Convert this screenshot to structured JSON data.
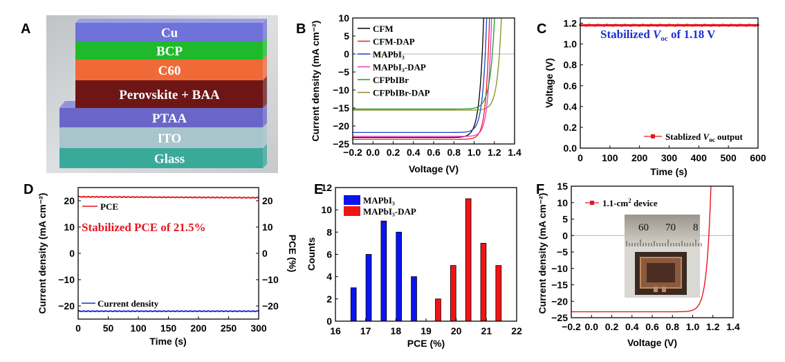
{
  "panels": {
    "a": "A",
    "b": "B",
    "c": "C",
    "d": "D",
    "e": "E",
    "f": "F"
  },
  "chart_data": [
    {
      "id": "A",
      "type": "diagram",
      "layers": [
        {
          "name": "Cu",
          "color": "#6f72d8"
        },
        {
          "name": "BCP",
          "color": "#1fba2b"
        },
        {
          "name": "C60",
          "color": "#f06a37"
        },
        {
          "name": "Perovskite + BAA",
          "color": "#6e1616"
        },
        {
          "name": "PTAA",
          "color": "#6a66c8"
        },
        {
          "name": "ITO",
          "color": "#a8c4cc"
        },
        {
          "name": "Glass",
          "color": "#39a99a"
        }
      ]
    },
    {
      "id": "B",
      "type": "line",
      "xlabel": "Voltage (V)",
      "ylabel": "Current density (mA cm⁻²)",
      "xlim": [
        -0.2,
        1.4
      ],
      "ylim": [
        -25,
        10
      ],
      "xticks": [
        -0.2,
        0.0,
        0.2,
        0.4,
        0.6,
        0.8,
        1.0,
        1.2,
        1.4
      ],
      "yticks": [
        -25,
        -20,
        -15,
        -10,
        -5,
        0,
        5,
        10
      ],
      "series": [
        {
          "name": "CFM",
          "color": "#000000",
          "jsc": -23.2,
          "voc": 1.08,
          "n": 1.55
        },
        {
          "name": "CFM-DAP",
          "color": "#ee1c24",
          "jsc": -23.7,
          "voc": 1.14,
          "n": 1.35
        },
        {
          "name": "MAPbI₃",
          "color": "#1c3fcf",
          "jsc": -21.8,
          "voc": 1.11,
          "n": 1.45
        },
        {
          "name": "MAPbI₃-DAP",
          "color": "#e838c8",
          "jsc": -22.9,
          "voc": 1.16,
          "n": 1.35
        },
        {
          "name": "CFPbIBr",
          "color": "#1f9a2a",
          "jsc": -15.3,
          "voc": 1.18,
          "n": 1.7
        },
        {
          "name": "CFPbIBr-DAP",
          "color": "#8b8b20",
          "jsc": -15.6,
          "voc": 1.25,
          "n": 1.5
        }
      ]
    },
    {
      "id": "C",
      "type": "line",
      "xlabel": "Time (s)",
      "ylabel": "Voltage (V)",
      "xlim": [
        0,
        600
      ],
      "ylim": [
        0.0,
        1.25
      ],
      "xticks": [
        0,
        100,
        200,
        300,
        400,
        500,
        600
      ],
      "yticks": [
        0.0,
        0.2,
        0.4,
        0.6,
        0.8,
        1.0,
        1.2
      ],
      "series": [
        {
          "name": "Stablized Voc output",
          "color": "#e8141c",
          "value": 1.18
        }
      ],
      "annotation_pre": "Stabilized ",
      "annotation_var": "V",
      "annotation_sub": "oc",
      "annotation_post": " of 1.18 V",
      "legend_pre": "Stablized ",
      "legend_var": "V",
      "legend_sub": "oc",
      "legend_post": " output"
    },
    {
      "id": "D",
      "type": "line",
      "xlabel": "Time (s)",
      "ylabel": "Current density (mA cm⁻²)",
      "ylabel_right": "PCE (%)",
      "xlim": [
        0,
        300
      ],
      "ylim": [
        -25,
        25
      ],
      "xticks": [
        0,
        50,
        100,
        150,
        200,
        250,
        300
      ],
      "yticks": [
        -20,
        -10,
        0,
        10,
        20
      ],
      "series": [
        {
          "name": "PCE",
          "color": "#e8141c",
          "value": 21.5
        },
        {
          "name": "Current density",
          "color": "#1c2fc8",
          "value": -22.0
        }
      ],
      "annotation": "Stabilized PCE of 21.5%"
    },
    {
      "id": "E",
      "type": "bar",
      "xlabel": "PCE (%)",
      "ylabel": "Counts",
      "xlim": [
        16,
        22
      ],
      "ylim": [
        0,
        12
      ],
      "xticks": [
        16,
        17,
        18,
        19,
        20,
        21,
        22
      ],
      "yticks": [
        0,
        2,
        4,
        6,
        8,
        10,
        12
      ],
      "bar_width": 0.18,
      "series": [
        {
          "name": "MAPbI₃",
          "color": "#0a14f0",
          "x": [
            16.6,
            17.1,
            17.6,
            18.1,
            18.6
          ],
          "values": [
            3,
            6,
            9,
            8,
            4
          ]
        },
        {
          "name": "MAPbI₃-DAP",
          "color": "#f01414",
          "x": [
            19.4,
            19.9,
            20.4,
            20.9,
            21.4
          ],
          "values": [
            2,
            5,
            11,
            7,
            5
          ]
        }
      ]
    },
    {
      "id": "F",
      "type": "line",
      "xlabel": "Voltage (V)",
      "ylabel": "Current density (mA cm⁻²)",
      "xlim": [
        -0.2,
        1.4
      ],
      "ylim": [
        -25,
        15
      ],
      "xticks": [
        -0.2,
        0.0,
        0.2,
        0.4,
        0.6,
        0.8,
        1.0,
        1.2,
        1.4
      ],
      "yticks": [
        -25,
        -20,
        -15,
        -10,
        -5,
        0,
        5,
        10,
        15
      ],
      "series": [
        {
          "name": "1.1-cm² device",
          "color": "#e8141c",
          "jsc": -23.2,
          "voc": 1.16,
          "n": 1.6
        }
      ],
      "legend_main": "1.1-cm",
      "legend_sup": "2",
      "legend_tail": " device",
      "inset_ruler": [
        "60",
        "70",
        "8"
      ]
    }
  ]
}
